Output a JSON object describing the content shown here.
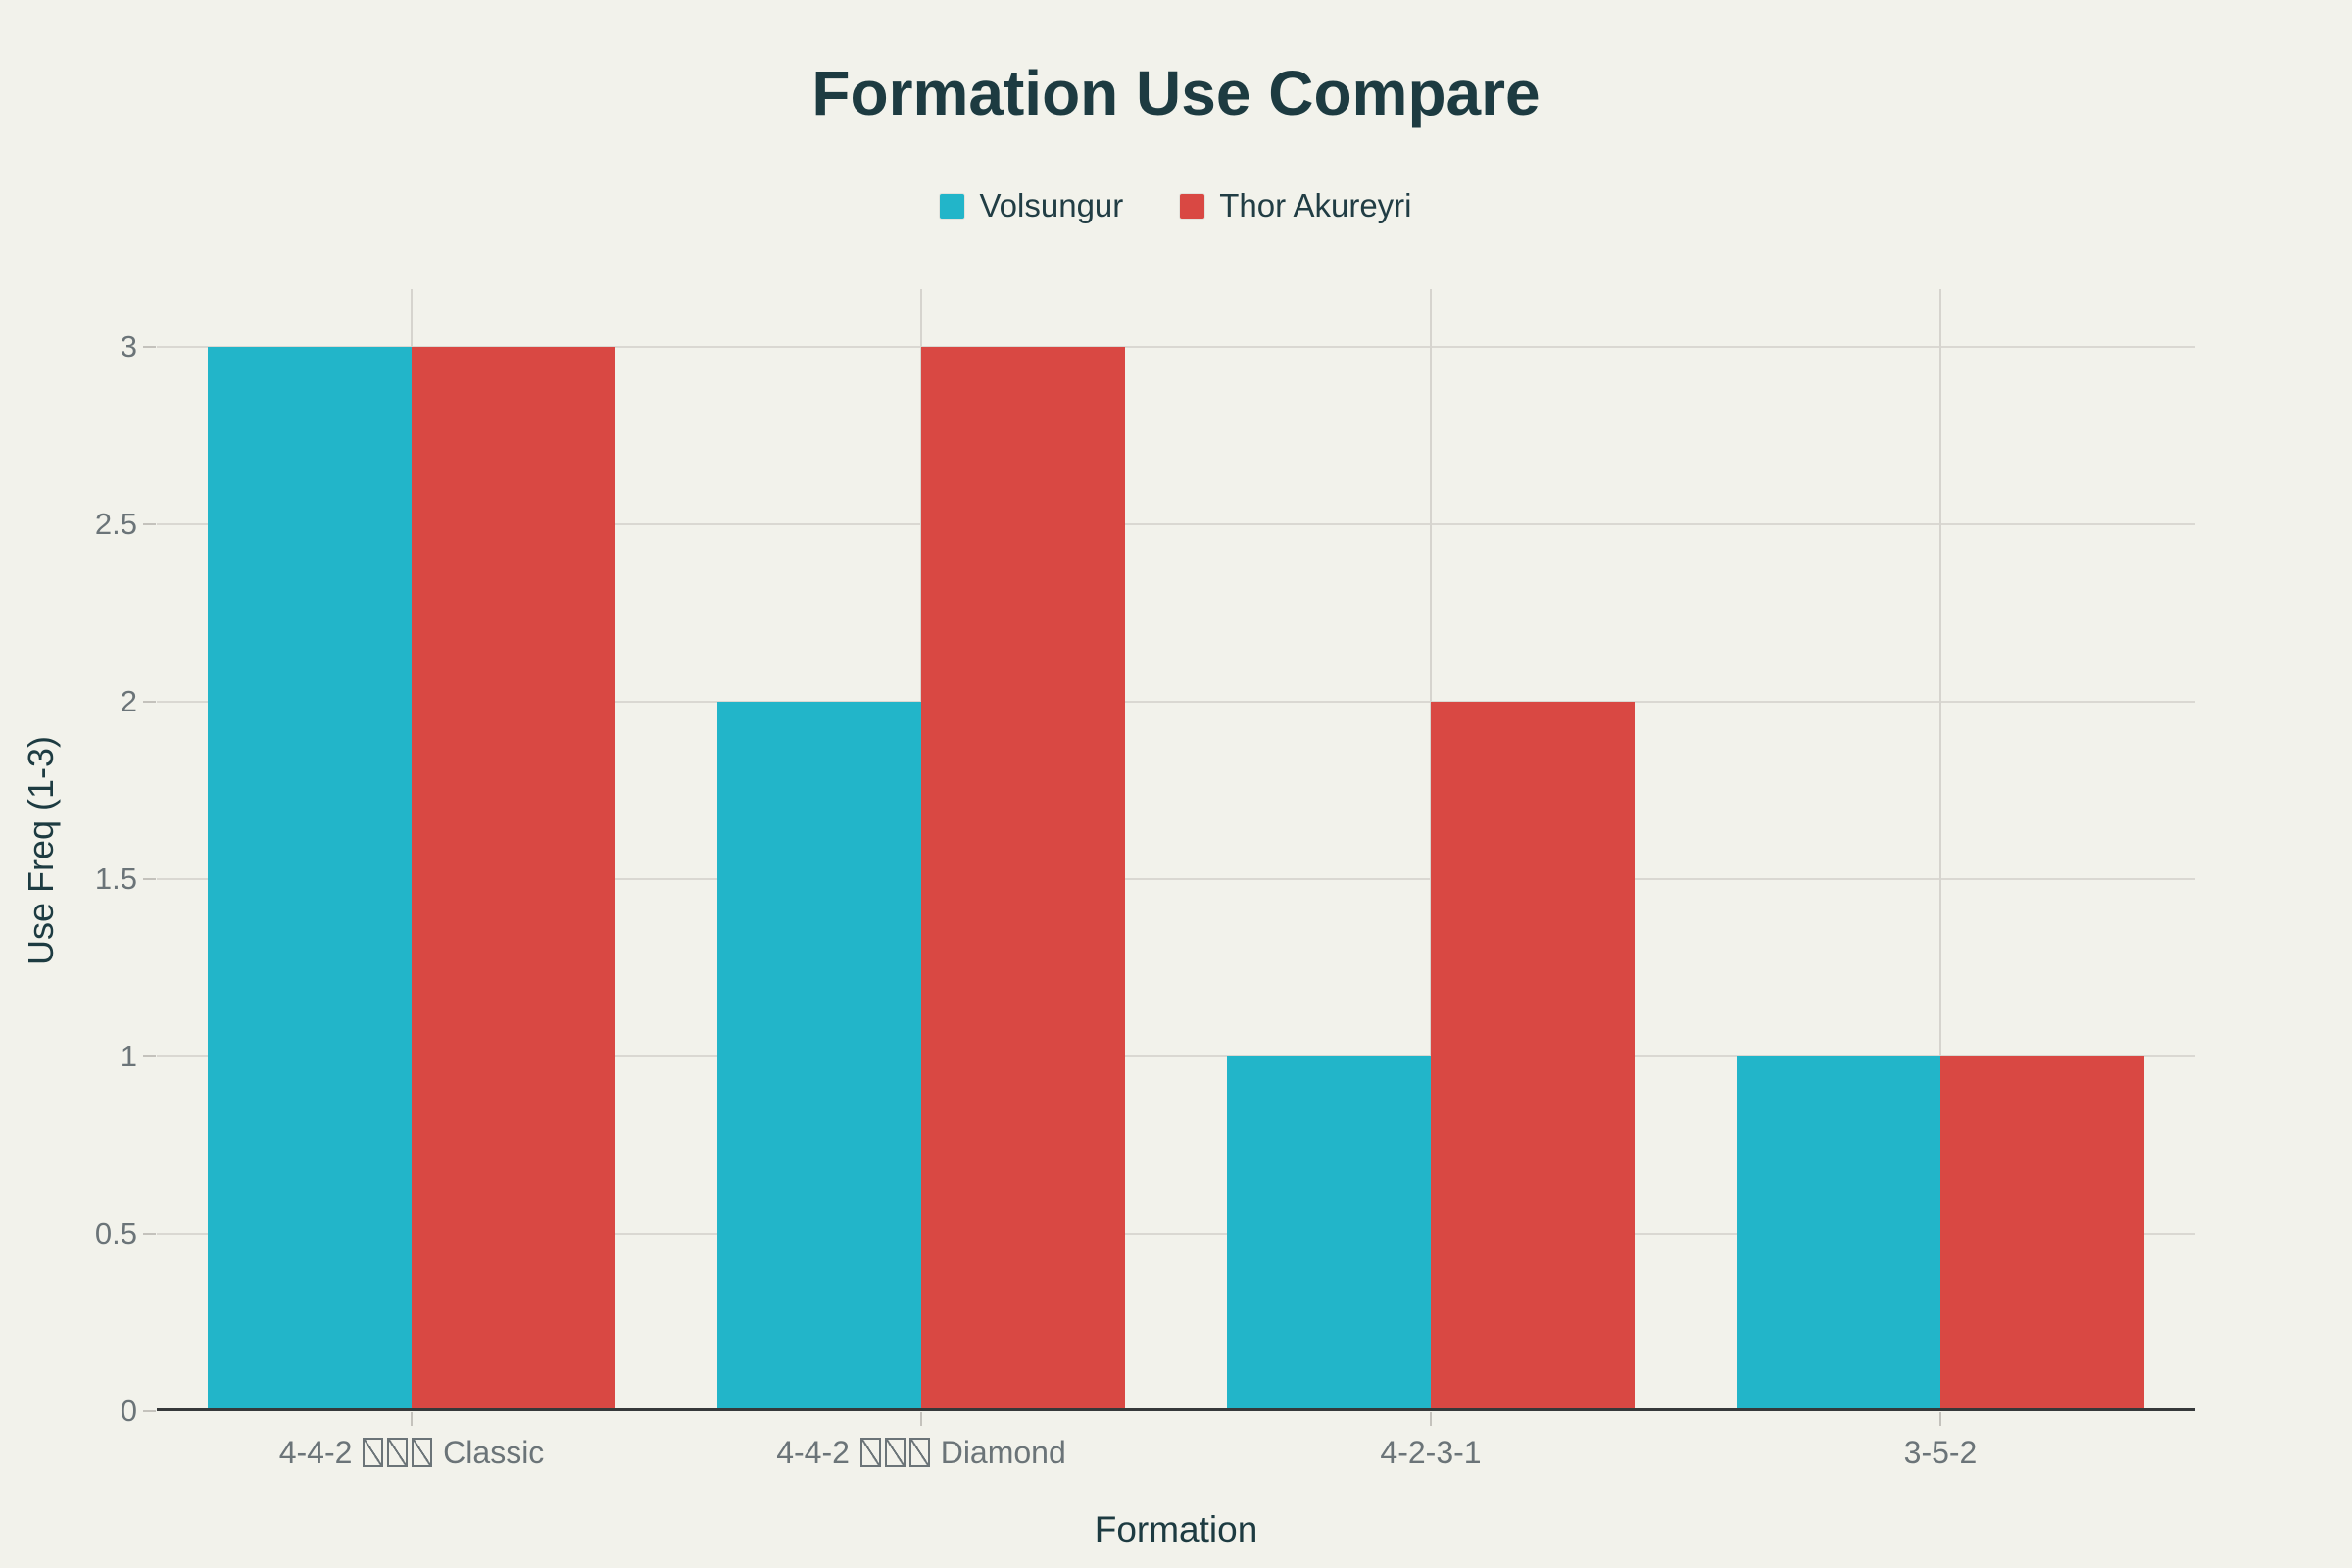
{
  "chart_data": {
    "type": "bar",
    "title": "Formation Use Compare",
    "xlabel": "Formation",
    "ylabel": "Use Freq (1-3)",
    "categories": [
      "4-4-2 □□□ Classic",
      "4-4-2 □□□ Diamond",
      "4-2-3-1",
      "3-5-2"
    ],
    "category_segments": [
      {
        "pre": "4-4-2 ",
        "tofu_count": 3,
        "post": " Classic"
      },
      {
        "pre": "4-4-2 ",
        "tofu_count": 3,
        "post": " Diamond"
      },
      {
        "pre": "4-2-3-1",
        "tofu_count": 0,
        "post": ""
      },
      {
        "pre": "3-5-2",
        "tofu_count": 0,
        "post": ""
      }
    ],
    "series": [
      {
        "name": "Volsungur",
        "color": "#22b5c9",
        "values": [
          3,
          2,
          1,
          1
        ]
      },
      {
        "name": "Thor Akureyri",
        "color": "#d94843",
        "values": [
          3,
          3,
          2,
          1
        ]
      }
    ],
    "yticks": [
      0,
      0.5,
      1,
      1.5,
      2,
      2.5,
      3
    ],
    "ylim": [
      0,
      3
    ],
    "grid": true,
    "legend_position": "top"
  },
  "colors": {
    "background": "#f2f2eb",
    "grid_line": "#d8d6d0",
    "axis_line": "#36393a",
    "tick_text": "#6b7478",
    "heading_text": "#1d3b41"
  }
}
